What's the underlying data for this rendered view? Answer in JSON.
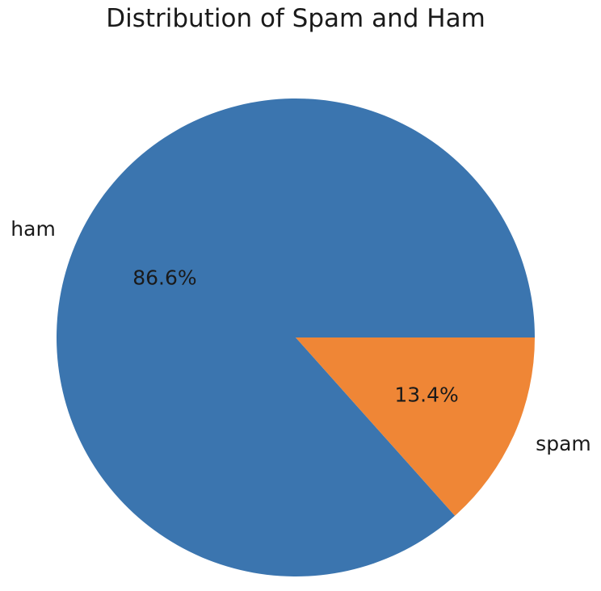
{
  "chart_data": {
    "type": "pie",
    "title": "Distribution of Spam and Ham",
    "categories": [
      "ham",
      "spam"
    ],
    "values": [
      86.6,
      13.4
    ],
    "value_labels": [
      "86.6%",
      "13.4%"
    ],
    "colors": [
      "#3b75af",
      "#ef8636"
    ],
    "start_angle": 0,
    "direction": "counterclockwise"
  }
}
